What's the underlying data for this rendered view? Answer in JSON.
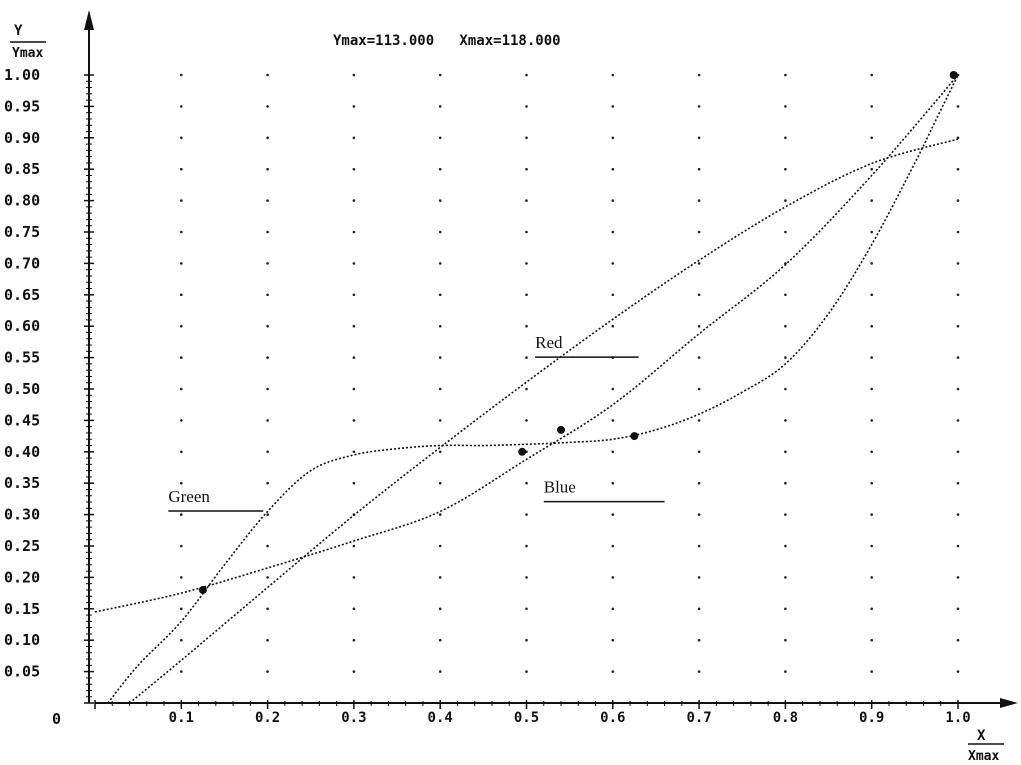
{
  "chart_data": {
    "type": "line",
    "header": "Ymax=113.000   Xmax=118.000",
    "y_axis": {
      "label_top": "Y",
      "label_bottom": "Ymax",
      "origin_label": "0",
      "ticks": [
        "0.05",
        "0.10",
        "0.15",
        "0.20",
        "0.25",
        "0.30",
        "0.35",
        "0.40",
        "0.45",
        "0.50",
        "0.55",
        "0.60",
        "0.65",
        "0.70",
        "0.75",
        "0.80",
        "0.85",
        "0.90",
        "0.95",
        "1.00"
      ],
      "ylim": [
        0,
        1.0
      ]
    },
    "x_axis": {
      "label_top": "X",
      "label_bottom": "Xmax",
      "ticks": [
        "0.1",
        "0.2",
        "0.3",
        "0.4",
        "0.5",
        "0.6",
        "0.7",
        "0.8",
        "0.9",
        "1.0"
      ],
      "xlim": [
        0,
        1.0
      ]
    },
    "grid": "dotted",
    "points": [
      {
        "x": 0.125,
        "y": 0.18
      },
      {
        "x": 0.495,
        "y": 0.4
      },
      {
        "x": 0.54,
        "y": 0.435
      },
      {
        "x": 0.625,
        "y": 0.425
      },
      {
        "x": 0.995,
        "y": 1.0
      }
    ],
    "series": [
      {
        "name": "Red",
        "x": [
          0.04,
          0.1,
          0.2,
          0.3,
          0.4,
          0.5,
          0.6,
          0.7,
          0.8,
          0.9,
          1.0
        ],
        "y": [
          0.0,
          0.068,
          0.184,
          0.299,
          0.407,
          0.511,
          0.611,
          0.705,
          0.79,
          0.859,
          0.898
        ]
      },
      {
        "name": "Green",
        "x": [
          0.015,
          0.05,
          0.1,
          0.15,
          0.2,
          0.25,
          0.3,
          0.35,
          0.4,
          0.45,
          0.5,
          0.55,
          0.6,
          0.65,
          0.7,
          0.75,
          0.8,
          0.85,
          0.9,
          0.95,
          0.975,
          1.0
        ],
        "y": [
          0.0,
          0.06,
          0.13,
          0.22,
          0.305,
          0.37,
          0.395,
          0.405,
          0.41,
          0.41,
          0.412,
          0.415,
          0.42,
          0.435,
          0.46,
          0.495,
          0.54,
          0.62,
          0.73,
          0.86,
          0.93,
          1.0
        ]
      },
      {
        "name": "Blue",
        "x": [
          0.0,
          0.1,
          0.2,
          0.3,
          0.4,
          0.5,
          0.6,
          0.7,
          0.8,
          0.9,
          1.0
        ],
        "y": [
          0.145,
          0.175,
          0.215,
          0.258,
          0.305,
          0.388,
          0.475,
          0.588,
          0.698,
          0.84,
          1.0
        ]
      }
    ],
    "annotations": [
      {
        "text": "Red",
        "x": 0.51,
        "y": 0.565
      },
      {
        "text": "Green",
        "x": 0.085,
        "y": 0.32
      },
      {
        "text": "Blue",
        "x": 0.52,
        "y": 0.335
      }
    ]
  }
}
